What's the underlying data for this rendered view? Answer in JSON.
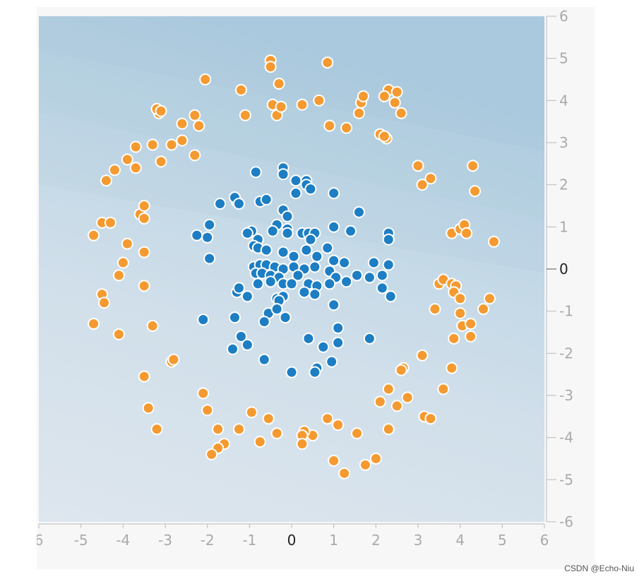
{
  "watermark": "CSDN @Echo-Niu",
  "colors": {
    "class_positive": "#f59a30",
    "class_negative": "#1d7ec4",
    "point_stroke": "#ffffff",
    "tick_text": "#aaaaaa",
    "tick_text_zero": "#222222",
    "bg_light": "#dee6ee",
    "bg_dark": "#b4d0e2"
  },
  "chart_data": {
    "type": "scatter",
    "title": "",
    "xlabel": "",
    "ylabel": "",
    "xlim": [
      -6,
      6
    ],
    "ylim": [
      -6,
      6
    ],
    "x_ticks": [
      "6",
      "-5",
      "-4",
      "-3",
      "-2",
      "-1",
      "0",
      "1",
      "2",
      "3",
      "4",
      "5",
      "6"
    ],
    "y_ticks": [
      "6",
      "5",
      "4",
      "3",
      "2",
      "1",
      "0",
      "-1",
      "-2",
      "-3",
      "-4",
      "-5",
      "-6"
    ],
    "grid": false,
    "legend": "none",
    "background": "decision-boundary shading: darker blue toward top-right",
    "series": [
      {
        "color": "#f59a30",
        "points": [
          [
            -4.7,
            0.8
          ],
          [
            -4.5,
            1.1
          ],
          [
            -4.3,
            1.1
          ],
          [
            -4.4,
            2.1
          ],
          [
            -4.2,
            2.35
          ],
          [
            -3.9,
            2.6
          ],
          [
            -3.7,
            2.4
          ],
          [
            -3.7,
            2.9
          ],
          [
            -3.6,
            1.3
          ],
          [
            -3.5,
            1.5
          ],
          [
            -3.5,
            1.2
          ],
          [
            -3.9,
            0.6
          ],
          [
            -3.5,
            0.4
          ],
          [
            -4.0,
            0.15
          ],
          [
            -4.1,
            -0.15
          ],
          [
            -3.5,
            -0.4
          ],
          [
            -4.5,
            -0.6
          ],
          [
            -4.45,
            -0.8
          ],
          [
            -4.7,
            -1.3
          ],
          [
            -4.1,
            -1.55
          ],
          [
            -3.3,
            -1.35
          ],
          [
            -3.5,
            -2.55
          ],
          [
            -3.4,
            -3.3
          ],
          [
            -3.2,
            -3.8
          ],
          [
            -2.85,
            -2.2
          ],
          [
            -2.8,
            -2.15
          ],
          [
            -3.3,
            2.95
          ],
          [
            -3.1,
            2.55
          ],
          [
            -2.85,
            2.95
          ],
          [
            -2.6,
            3.05
          ],
          [
            -2.3,
            2.7
          ],
          [
            -2.6,
            3.45
          ],
          [
            -2.3,
            3.65
          ],
          [
            -2.2,
            3.4
          ],
          [
            -3.15,
            3.7
          ],
          [
            -3.2,
            3.8
          ],
          [
            -3.1,
            3.75
          ],
          [
            -2.05,
            4.5
          ],
          [
            -1.2,
            4.25
          ],
          [
            -1.1,
            3.65
          ],
          [
            -0.5,
            4.95
          ],
          [
            -0.5,
            4.8
          ],
          [
            -0.3,
            4.4
          ],
          [
            -0.45,
            3.9
          ],
          [
            -0.35,
            3.65
          ],
          [
            -0.25,
            3.85
          ],
          [
            0.25,
            3.9
          ],
          [
            0.65,
            4.0
          ],
          [
            0.85,
            4.9
          ],
          [
            0.9,
            3.4
          ],
          [
            1.3,
            3.35
          ],
          [
            1.6,
            3.7
          ],
          [
            1.65,
            3.95
          ],
          [
            1.7,
            4.1
          ],
          [
            2.3,
            4.25
          ],
          [
            2.2,
            4.1
          ],
          [
            2.5,
            4.2
          ],
          [
            2.45,
            3.95
          ],
          [
            2.6,
            3.7
          ],
          [
            2.1,
            3.2
          ],
          [
            2.25,
            3.1
          ],
          [
            2.2,
            3.15
          ],
          [
            3.0,
            2.45
          ],
          [
            3.1,
            2.0
          ],
          [
            3.3,
            2.15
          ],
          [
            3.8,
            0.85
          ],
          [
            4.0,
            0.95
          ],
          [
            4.1,
            1.05
          ],
          [
            4.15,
            0.85
          ],
          [
            4.3,
            2.45
          ],
          [
            4.35,
            1.85
          ],
          [
            4.8,
            0.65
          ],
          [
            3.5,
            -0.35
          ],
          [
            3.6,
            -0.25
          ],
          [
            3.8,
            -0.35
          ],
          [
            3.9,
            -0.4
          ],
          [
            3.85,
            -0.55
          ],
          [
            4.0,
            -0.7
          ],
          [
            3.4,
            -0.95
          ],
          [
            4.0,
            -1.05
          ],
          [
            4.05,
            -1.35
          ],
          [
            4.25,
            -1.3
          ],
          [
            4.25,
            -1.6
          ],
          [
            4.55,
            -0.95
          ],
          [
            4.7,
            -0.7
          ],
          [
            3.85,
            -1.65
          ],
          [
            3.1,
            -2.05
          ],
          [
            3.8,
            -2.35
          ],
          [
            2.65,
            -2.35
          ],
          [
            2.6,
            -2.4
          ],
          [
            2.3,
            -2.85
          ],
          [
            2.1,
            -3.15
          ],
          [
            2.5,
            -3.25
          ],
          [
            2.75,
            -3.05
          ],
          [
            3.6,
            -2.85
          ],
          [
            3.15,
            -3.5
          ],
          [
            3.3,
            -3.55
          ],
          [
            2.3,
            -3.8
          ],
          [
            2.0,
            -4.5
          ],
          [
            1.75,
            -4.65
          ],
          [
            1.25,
            -4.85
          ],
          [
            1.0,
            -4.55
          ],
          [
            1.55,
            -3.9
          ],
          [
            1.1,
            -3.7
          ],
          [
            0.85,
            -3.55
          ],
          [
            0.5,
            -3.95
          ],
          [
            0.3,
            -3.85
          ],
          [
            0.25,
            -3.95
          ],
          [
            0.25,
            -4.15
          ],
          [
            -0.35,
            -3.9
          ],
          [
            -0.55,
            -3.55
          ],
          [
            -0.75,
            -4.1
          ],
          [
            -0.95,
            -3.4
          ],
          [
            -1.25,
            -3.8
          ],
          [
            -1.6,
            -4.15
          ],
          [
            -1.75,
            -4.25
          ],
          [
            -1.75,
            -3.8
          ],
          [
            -1.9,
            -4.4
          ],
          [
            -2.0,
            -3.35
          ],
          [
            -2.1,
            -2.95
          ]
        ]
      },
      {
        "color": "#1d7ec4",
        "points": [
          [
            -0.85,
            2.3
          ],
          [
            -0.2,
            2.4
          ],
          [
            -0.2,
            2.25
          ],
          [
            0.1,
            2.1
          ],
          [
            0.35,
            2.1
          ],
          [
            0.35,
            2.0
          ],
          [
            0.45,
            1.9
          ],
          [
            1.0,
            1.8
          ],
          [
            0.1,
            1.8
          ],
          [
            -1.3,
            1.6
          ],
          [
            -1.35,
            1.7
          ],
          [
            -1.25,
            1.55
          ],
          [
            -1.7,
            1.55
          ],
          [
            -0.75,
            1.6
          ],
          [
            -0.6,
            1.65
          ],
          [
            -0.2,
            1.4
          ],
          [
            -0.1,
            1.25
          ],
          [
            -0.35,
            1.05
          ],
          [
            -0.1,
            0.95
          ],
          [
            -0.45,
            0.9
          ],
          [
            -0.95,
            0.9
          ],
          [
            -1.05,
            0.85
          ],
          [
            -0.8,
            0.7
          ],
          [
            -0.1,
            0.85
          ],
          [
            0.25,
            0.85
          ],
          [
            0.4,
            0.85
          ],
          [
            0.55,
            0.85
          ],
          [
            0.45,
            0.7
          ],
          [
            1.0,
            1.0
          ],
          [
            1.4,
            0.9
          ],
          [
            1.6,
            1.35
          ],
          [
            2.3,
            0.85
          ],
          [
            2.3,
            0.7
          ],
          [
            -2.25,
            0.8
          ],
          [
            -1.95,
            1.05
          ],
          [
            -2.0,
            0.75
          ],
          [
            -1.95,
            0.25
          ],
          [
            -0.9,
            0.55
          ],
          [
            -0.8,
            0.5
          ],
          [
            -0.6,
            0.45
          ],
          [
            -0.2,
            0.4
          ],
          [
            0.05,
            0.3
          ],
          [
            0.35,
            0.45
          ],
          [
            0.6,
            0.3
          ],
          [
            0.85,
            0.5
          ],
          [
            1.0,
            0.2
          ],
          [
            1.25,
            0.15
          ],
          [
            -0.9,
            0.05
          ],
          [
            -0.75,
            0.1
          ],
          [
            -0.6,
            0.1
          ],
          [
            -0.4,
            0.05
          ],
          [
            -0.2,
            0.0
          ],
          [
            0.05,
            0.05
          ],
          [
            0.3,
            0.0
          ],
          [
            0.55,
            0.05
          ],
          [
            0.9,
            -0.05
          ],
          [
            1.05,
            -0.2
          ],
          [
            0.9,
            -0.35
          ],
          [
            -0.85,
            -0.1
          ],
          [
            -0.7,
            -0.1
          ],
          [
            -0.5,
            -0.15
          ],
          [
            -0.3,
            -0.2
          ],
          [
            0.15,
            -0.15
          ],
          [
            0.4,
            -0.35
          ],
          [
            0.6,
            -0.4
          ],
          [
            -0.8,
            -0.35
          ],
          [
            -0.5,
            -0.3
          ],
          [
            -0.2,
            -0.35
          ],
          [
            0.0,
            -0.35
          ],
          [
            0.3,
            -0.55
          ],
          [
            0.55,
            -0.6
          ],
          [
            -1.3,
            -0.55
          ],
          [
            -1.25,
            -0.45
          ],
          [
            -1.05,
            -0.65
          ],
          [
            -0.35,
            -0.7
          ],
          [
            -0.2,
            -0.65
          ],
          [
            -0.3,
            -0.75
          ],
          [
            1.3,
            -0.3
          ],
          [
            1.55,
            -0.15
          ],
          [
            1.85,
            -0.2
          ],
          [
            1.95,
            0.15
          ],
          [
            2.15,
            -0.15
          ],
          [
            2.3,
            0.1
          ],
          [
            2.15,
            -0.45
          ],
          [
            2.35,
            -0.65
          ],
          [
            -0.55,
            -1.05
          ],
          [
            -0.35,
            -0.95
          ],
          [
            -0.15,
            -1.15
          ],
          [
            -0.65,
            -1.25
          ],
          [
            -1.35,
            -1.15
          ],
          [
            -2.1,
            -1.2
          ],
          [
            -1.2,
            -1.6
          ],
          [
            -1.05,
            -1.8
          ],
          [
            -1.4,
            -1.9
          ],
          [
            -0.65,
            -2.15
          ],
          [
            1.0,
            -0.85
          ],
          [
            1.1,
            -1.4
          ],
          [
            0.4,
            -1.65
          ],
          [
            0.75,
            -1.85
          ],
          [
            1.1,
            -1.75
          ],
          [
            1.85,
            -1.65
          ],
          [
            0.95,
            -2.2
          ],
          [
            0.6,
            -2.35
          ],
          [
            0.55,
            -2.45
          ],
          [
            0.0,
            -2.45
          ]
        ]
      }
    ]
  }
}
